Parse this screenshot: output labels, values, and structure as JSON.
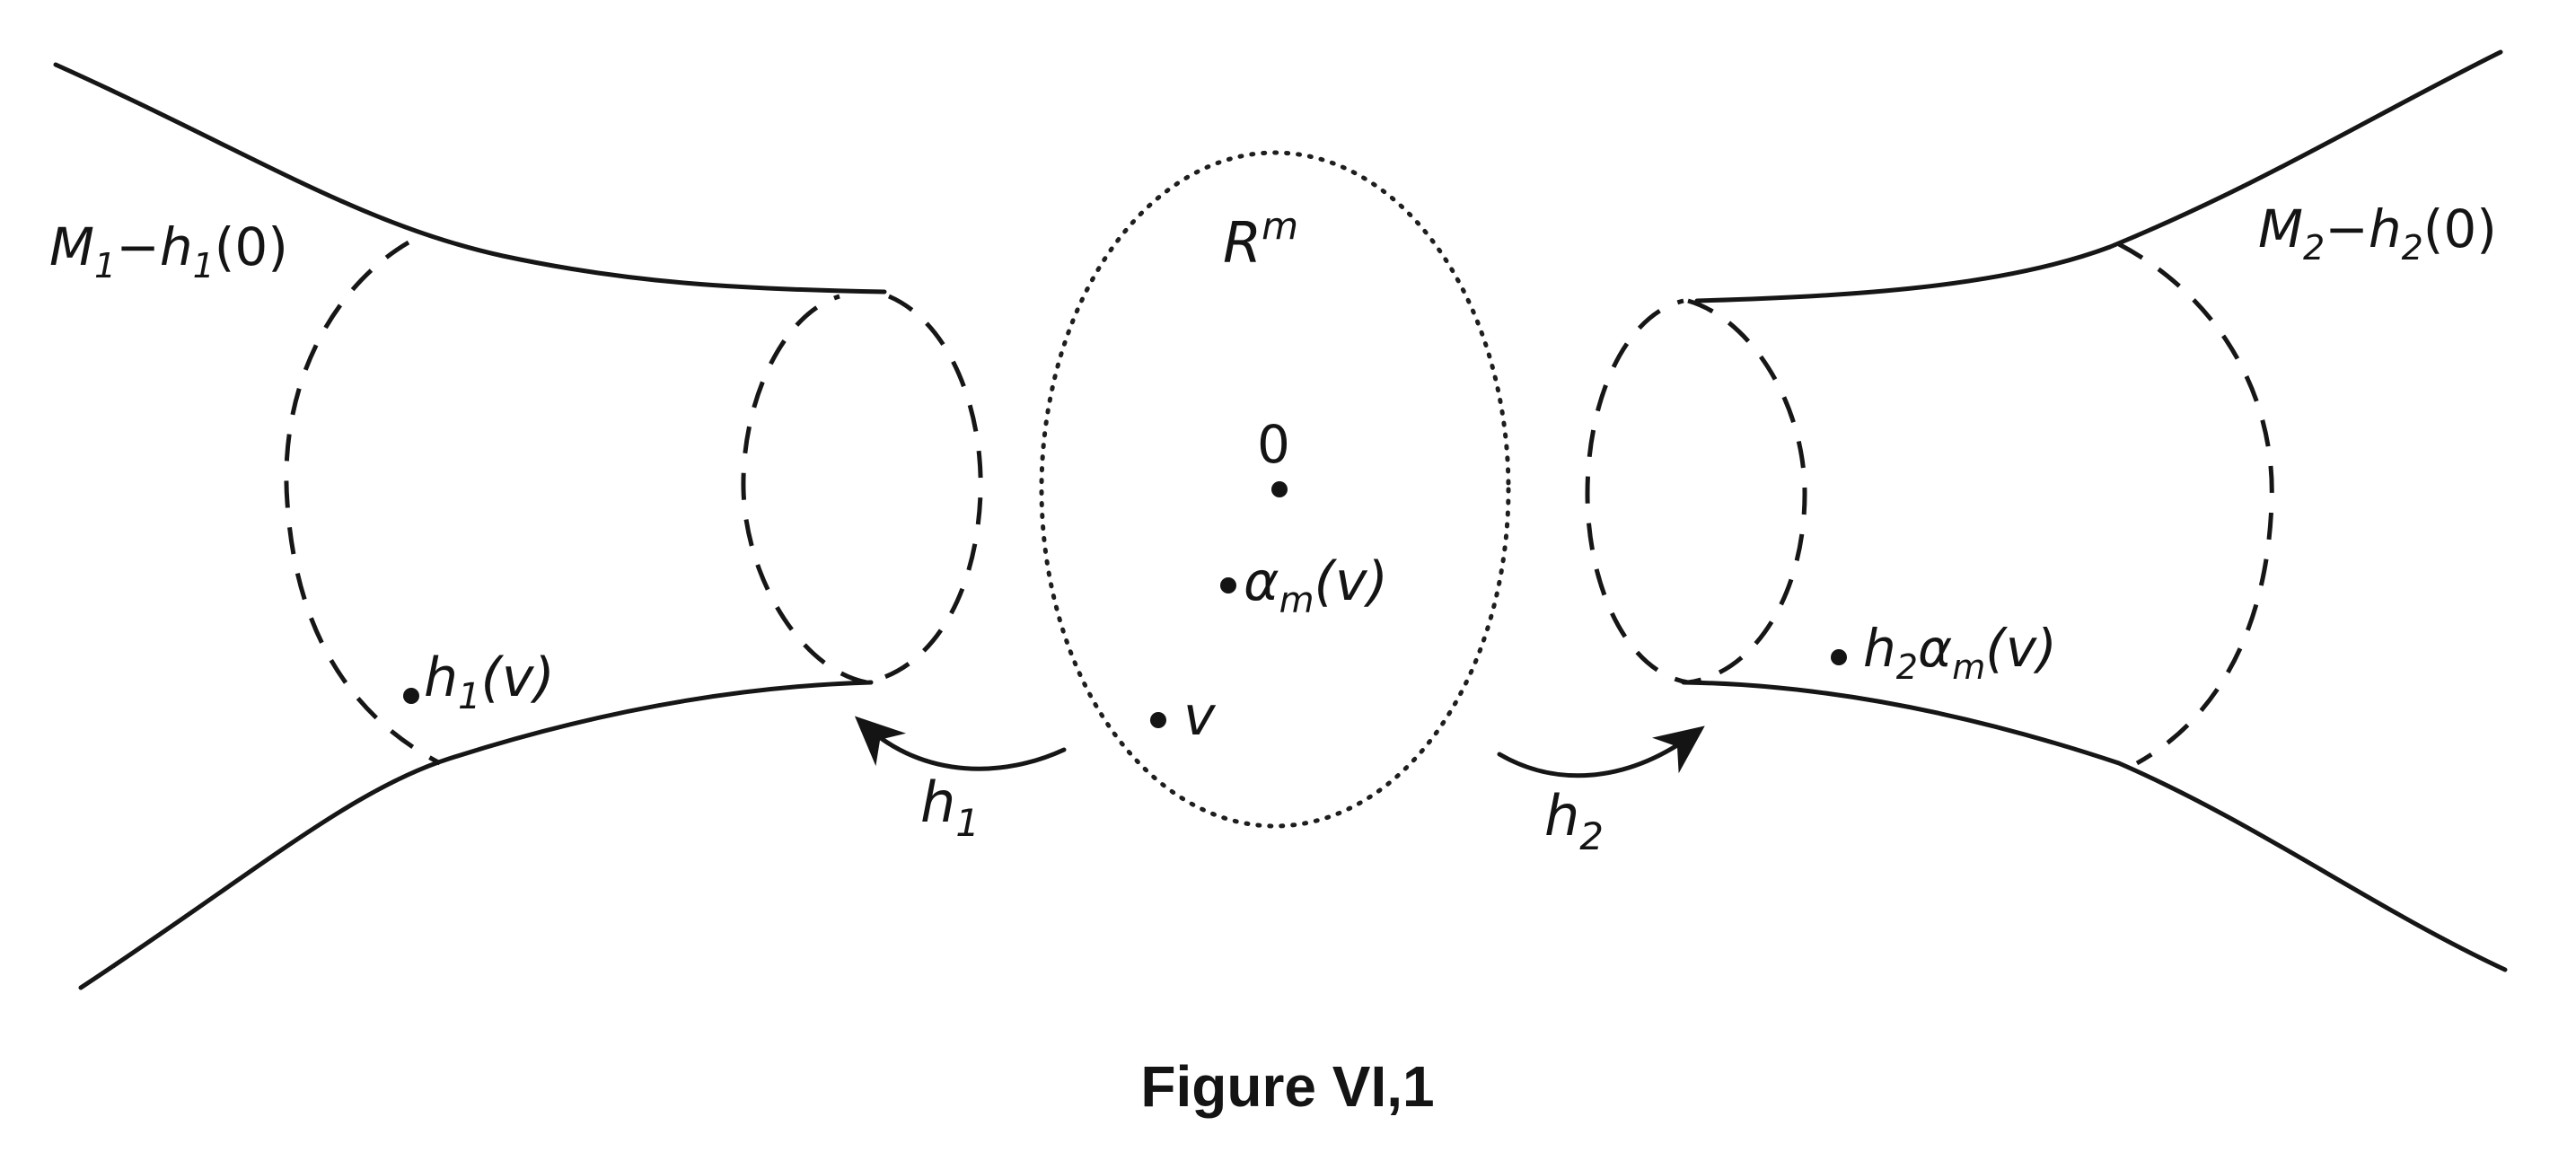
{
  "labels": {
    "m1_label": {
      "base": "M",
      "sub1": "1",
      "mid": "−h",
      "sub2": "1",
      "tail": "(0)"
    },
    "m2_label": {
      "base": "M",
      "sub1": "2",
      "mid": "−h",
      "sub2": "2",
      "tail": "(0)"
    },
    "rm_label": {
      "base": "R",
      "sup": "m"
    },
    "zero_label": "0",
    "alpha_label": {
      "base": "α",
      "sub": "m",
      "tail": "(v)"
    },
    "v_label": "v",
    "h1v_label": {
      "base": "h",
      "sub": "1",
      "tail": "(v)"
    },
    "h2alpha_label": {
      "base": "h",
      "sub": "2",
      "mid": "α",
      "sub2": "m",
      "tail": "(v)"
    },
    "h1_arrow_label": {
      "base": "h",
      "sub": "1"
    },
    "h2_arrow_label": {
      "base": "h",
      "sub": "2"
    }
  },
  "caption": "Figure VI,1"
}
